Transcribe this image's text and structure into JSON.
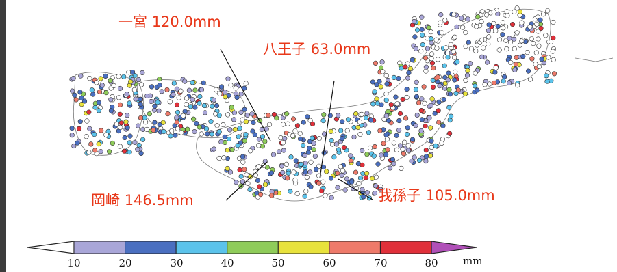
{
  "stations": [
    {
      "name": "一宮",
      "value": "120.0mm"
    },
    {
      "name": "八王子",
      "value": "63.0mm"
    },
    {
      "name": "岡崎",
      "value": "146.5mm"
    },
    {
      "name": "我孫子",
      "value": "105.0mm"
    }
  ],
  "legend": {
    "unit": "mm",
    "ticks": [
      "10",
      "20",
      "30",
      "40",
      "50",
      "60",
      "70",
      "80"
    ],
    "colors": [
      "#a9a6d8",
      "#4a6fc0",
      "#5bc3eb",
      "#8fcc5a",
      "#e8e23c",
      "#ee7a6a",
      "#e0303a"
    ],
    "low_color": "#ffffff",
    "high_color": "#b050b8"
  },
  "accent_color": "#e8381a"
}
